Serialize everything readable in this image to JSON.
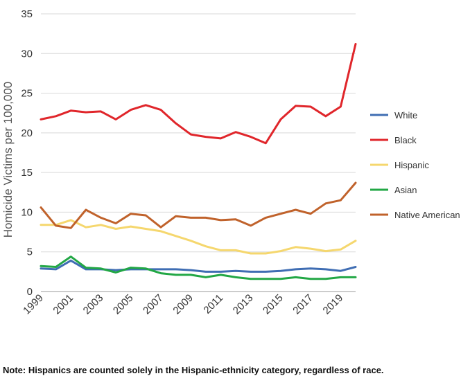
{
  "chart_data": {
    "type": "line",
    "title": "",
    "xlabel": "",
    "ylabel": "Homicide Victims per 100,000",
    "ylim": [
      0,
      35
    ],
    "yticks": [
      0,
      5,
      10,
      15,
      20,
      25,
      30,
      35
    ],
    "xticks": [
      1999,
      2001,
      2003,
      2005,
      2007,
      2009,
      2011,
      2013,
      2015,
      2017,
      2019
    ],
    "grid": "horizontal",
    "legend_position": "right",
    "x": [
      1999,
      2000,
      2001,
      2002,
      2003,
      2004,
      2005,
      2006,
      2007,
      2008,
      2009,
      2010,
      2011,
      2012,
      2013,
      2014,
      2015,
      2016,
      2017,
      2018,
      2019,
      2020
    ],
    "series": [
      {
        "name": "White",
        "color": "#3f6db3",
        "values": [
          2.9,
          2.8,
          3.9,
          2.8,
          2.8,
          2.7,
          2.8,
          2.8,
          2.8,
          2.8,
          2.7,
          2.5,
          2.5,
          2.6,
          2.5,
          2.5,
          2.6,
          2.8,
          2.9,
          2.8,
          2.6,
          3.1
        ]
      },
      {
        "name": "Black",
        "color": "#e0262b",
        "values": [
          21.7,
          22.1,
          22.8,
          22.6,
          22.7,
          21.7,
          22.9,
          23.5,
          22.9,
          21.2,
          19.8,
          19.5,
          19.3,
          20.1,
          19.5,
          18.7,
          21.7,
          23.4,
          23.3,
          22.1,
          23.3,
          31.2
        ]
      },
      {
        "name": "Hispanic",
        "color": "#f5d76e",
        "values": [
          8.4,
          8.4,
          9.0,
          8.1,
          8.4,
          7.9,
          8.2,
          7.9,
          7.6,
          7.0,
          6.4,
          5.7,
          5.2,
          5.2,
          4.8,
          4.8,
          5.1,
          5.6,
          5.4,
          5.1,
          5.3,
          6.4
        ]
      },
      {
        "name": "Asian",
        "color": "#22a745",
        "values": [
          3.2,
          3.1,
          4.4,
          3.0,
          2.9,
          2.4,
          3.0,
          2.9,
          2.3,
          2.1,
          2.1,
          1.8,
          2.1,
          1.8,
          1.6,
          1.6,
          1.6,
          1.8,
          1.6,
          1.6,
          1.8,
          1.8
        ]
      },
      {
        "name": "Native American",
        "color": "#c0622b",
        "values": [
          10.6,
          8.3,
          8.0,
          10.3,
          9.3,
          8.6,
          9.8,
          9.6,
          8.1,
          9.5,
          9.3,
          9.3,
          9.0,
          9.1,
          8.3,
          9.3,
          9.8,
          10.3,
          9.8,
          11.1,
          11.5,
          13.7
        ]
      }
    ],
    "note": "Note: Hispanics are counted solely in the Hispanic-ethnicity category, regardless of race."
  }
}
